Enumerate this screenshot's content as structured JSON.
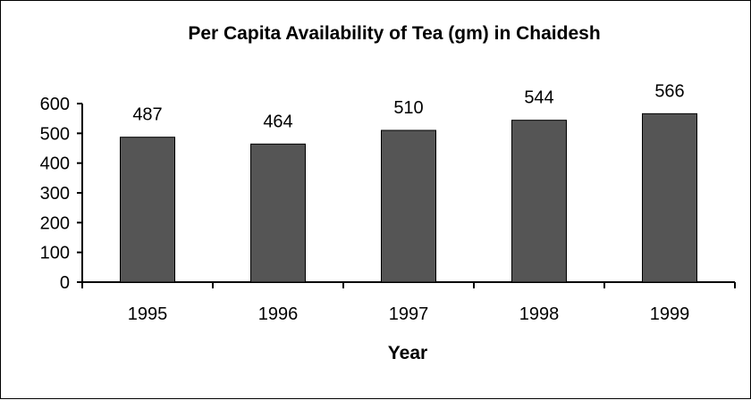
{
  "chart_data": {
    "type": "bar",
    "title": "Per Capita Availability of Tea (gm) in Chaidesh",
    "xlabel": "Year",
    "ylabel": "",
    "categories": [
      "1995",
      "1996",
      "1997",
      "1998",
      "1999"
    ],
    "values": [
      487,
      464,
      510,
      544,
      566
    ],
    "data_labels": [
      "487",
      "464",
      "510",
      "544",
      "566"
    ],
    "ylim": [
      0,
      600
    ],
    "yticks": [
      "0",
      "100",
      "200",
      "300",
      "400",
      "500",
      "600"
    ],
    "grid": false,
    "legend": "none",
    "bar_color": "#555555"
  }
}
